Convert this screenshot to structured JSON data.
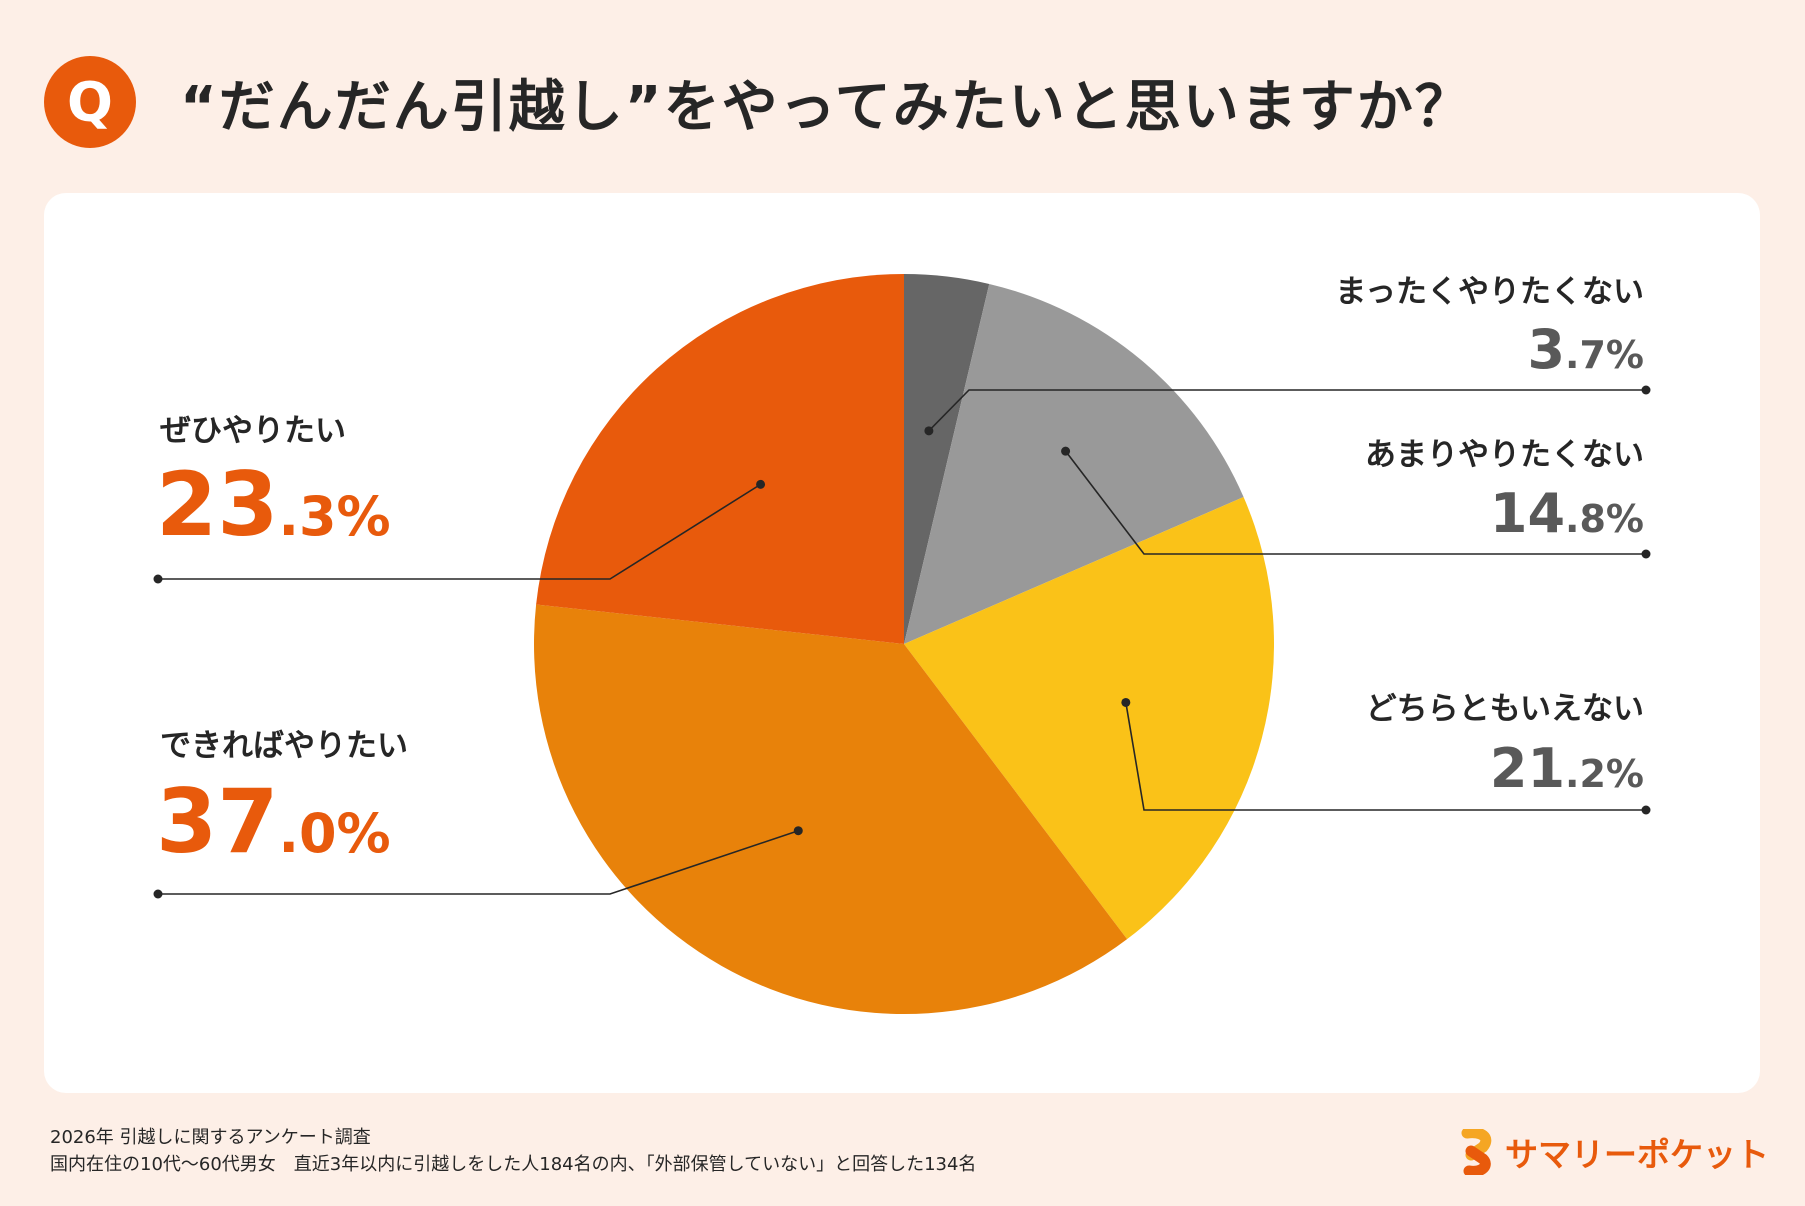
{
  "header": {
    "badge": "Q",
    "title": "“だんだん引越し”をやってみたいと思いますか？"
  },
  "chart_data": {
    "type": "pie",
    "title": "“だんだん引越し”をやってみたいと思いますか？",
    "slices": [
      {
        "label": "まったくやりたくない",
        "value": 3.7,
        "int": "3",
        "dec": ".7%",
        "color": "#666666"
      },
      {
        "label": "あまりやりたくない",
        "value": 14.8,
        "int": "14",
        "dec": ".8%",
        "color": "#999999"
      },
      {
        "label": "どちらともいえない",
        "value": 21.2,
        "int": "21",
        "dec": ".2%",
        "color": "#fac218"
      },
      {
        "label": "できればやりたい",
        "value": 37.0,
        "int": "37",
        "dec": ".0%",
        "color": "#e8820a"
      },
      {
        "label": "ぜひやりたい",
        "value": 23.3,
        "int": "23",
        "dec": ".3%",
        "color": "#e85a0c"
      }
    ],
    "start": "12 o'clock",
    "direction": "clockwise"
  },
  "footer": {
    "line1": "2026年 引越しに関するアンケート調査",
    "line2": "国内在住の10代〜60代男女　直近3年以内に引越しをした人184名の内、「外部保管していない」と回答した134名"
  },
  "brand": {
    "name": "サマリーポケット",
    "color": "#e85a0c"
  },
  "colors": {
    "accent": "#e85a0c",
    "background": "#fdefe7",
    "card": "#ffffff",
    "text": "#262626",
    "muted": "#595959"
  }
}
